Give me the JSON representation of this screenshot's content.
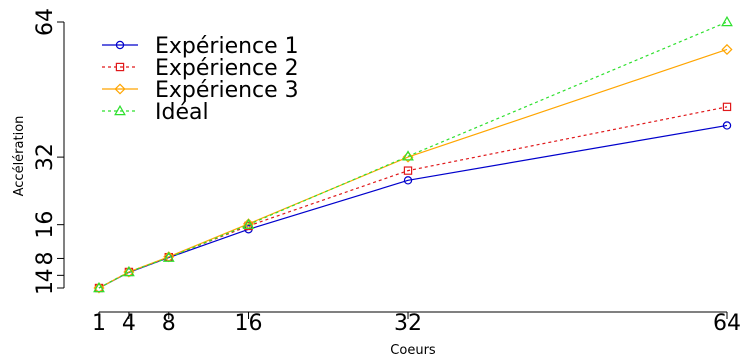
{
  "chart_data": {
    "type": "line",
    "xlabel": "Coeurs",
    "ylabel": "Accélération",
    "x": [
      1,
      4,
      8,
      16,
      32,
      64
    ],
    "x_ticks": [
      1,
      4,
      8,
      16,
      32,
      64
    ],
    "y_ticks": [
      1,
      4,
      8,
      16,
      32,
      64
    ],
    "y_tick_labels": [
      "1",
      "4",
      "8",
      "16",
      "32",
      "64"
    ],
    "xlim": [
      1,
      64
    ],
    "ylim": [
      1,
      64
    ],
    "grid": false,
    "legend_position": "top-left",
    "series": [
      {
        "name": "Expérience 1",
        "values": [
          1,
          4.7,
          8.2,
          14.9,
          26.5,
          39.5
        ],
        "color": "#0000CC",
        "marker": "circle",
        "dashed": false
      },
      {
        "name": "Expérience 2",
        "values": [
          1,
          4.8,
          8.3,
          15.7,
          28.8,
          43.9
        ],
        "color": "#E0191B",
        "marker": "square",
        "dashed": true
      },
      {
        "name": "Expérience 3",
        "values": [
          1,
          4.8,
          8.4,
          16.2,
          32.0,
          57.5
        ],
        "color": "#FFA500",
        "marker": "diamond",
        "dashed": false
      },
      {
        "name": "Idéal",
        "values": [
          1,
          4.8,
          8.2,
          16.0,
          32.2,
          64.0
        ],
        "color": "#2EE02E",
        "marker": "triangle",
        "dashed": true
      }
    ]
  }
}
